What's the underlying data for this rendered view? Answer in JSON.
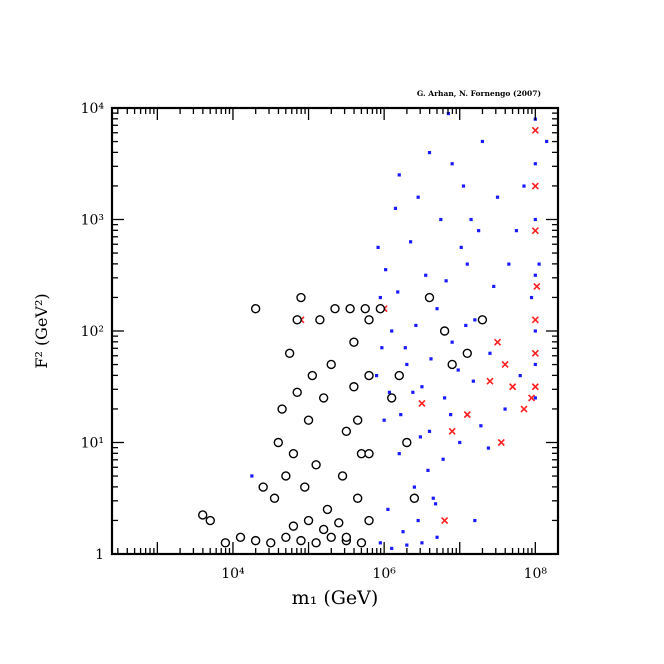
{
  "chart_data": {
    "type": "scatter",
    "title": "",
    "credit": "G. Arhan, N. Fornengo (2007)",
    "xlabel": "m₁  (GeV)",
    "ylabel": "F² (GeV²)",
    "x_scale": "log",
    "y_scale": "log",
    "xlim": [
      2.4,
      8.3
    ],
    "ylim": [
      0,
      4
    ],
    "x_ticks": [
      {
        "value": 4,
        "label": "10⁴"
      },
      {
        "value": 6,
        "label": "10⁶"
      },
      {
        "value": 8,
        "label": "10⁸"
      }
    ],
    "y_ticks": [
      {
        "value": 0,
        "label": "1"
      },
      {
        "value": 1,
        "label": "10¹"
      },
      {
        "value": 2,
        "label": "10²"
      },
      {
        "value": 3,
        "label": "10³"
      },
      {
        "value": 4,
        "label": "10⁴"
      }
    ],
    "grid": false,
    "colors": {
      "dots": "#1a1aff",
      "crosses": "#ff2020",
      "circle_edge": "#000000",
      "axes": "#000000"
    },
    "series": [
      {
        "marker": "dot",
        "color": "#1a1aff",
        "points": [
          [
            5.95,
            2.3
          ],
          [
            6.1,
            2.0
          ],
          [
            6.3,
            1.7
          ],
          [
            6.5,
            1.5
          ],
          [
            6.7,
            2.2
          ],
          [
            6.9,
            1.9
          ],
          [
            7.1,
            2.6
          ],
          [
            6.0,
            1.2
          ],
          [
            6.2,
            0.9
          ],
          [
            6.4,
            0.6
          ],
          [
            6.6,
            1.1
          ],
          [
            6.8,
            1.4
          ],
          [
            7.0,
            1.0
          ],
          [
            7.2,
            2.1
          ],
          [
            7.4,
            1.8
          ],
          [
            6.05,
            0.4
          ],
          [
            6.25,
            0.2
          ],
          [
            6.45,
            0.3
          ],
          [
            6.65,
            0.5
          ],
          [
            5.9,
            1.6
          ],
          [
            6.15,
            3.1
          ],
          [
            6.35,
            2.8
          ],
          [
            6.55,
            2.5
          ],
          [
            6.75,
            3.0
          ],
          [
            7.05,
            3.3
          ],
          [
            7.25,
            2.9
          ],
          [
            7.45,
            2.4
          ],
          [
            7.6,
            1.3
          ],
          [
            7.8,
            1.6
          ],
          [
            8.0,
            3.9
          ],
          [
            8.0,
            3.5
          ],
          [
            8.0,
            3.0
          ],
          [
            8.0,
            2.5
          ],
          [
            8.0,
            2.0
          ],
          [
            8.0,
            1.7
          ],
          [
            8.0,
            1.4
          ],
          [
            8.15,
            3.7
          ],
          [
            8.05,
            2.6
          ],
          [
            7.95,
            2.3
          ],
          [
            6.6,
            3.6
          ],
          [
            7.3,
            3.7
          ],
          [
            6.9,
            3.5
          ],
          [
            7.5,
            3.2
          ],
          [
            6.2,
            3.4
          ],
          [
            5.95,
            0.1
          ],
          [
            6.1,
            0.05
          ],
          [
            6.3,
            0.08
          ],
          [
            6.5,
            0.1
          ],
          [
            6.7,
            0.15
          ],
          [
            7.2,
            0.3
          ],
          [
            5.92,
            2.75
          ],
          [
            6.02,
            2.55
          ],
          [
            6.18,
            2.35
          ],
          [
            6.28,
            1.85
          ],
          [
            6.38,
            1.45
          ],
          [
            6.48,
            1.05
          ],
          [
            6.58,
            0.75
          ],
          [
            6.68,
            0.45
          ],
          [
            6.78,
            0.85
          ],
          [
            6.88,
            1.25
          ],
          [
            6.98,
            1.65
          ],
          [
            7.08,
            2.05
          ],
          [
            7.18,
            1.55
          ],
          [
            7.28,
            1.15
          ],
          [
            7.38,
            0.95
          ],
          [
            5.97,
            1.85
          ],
          [
            6.07,
            1.45
          ],
          [
            6.22,
            1.25
          ],
          [
            6.42,
            2.05
          ],
          [
            6.62,
            1.75
          ],
          [
            6.82,
            2.45
          ],
          [
            7.02,
            2.75
          ],
          [
            4.25,
            0.7
          ],
          [
            7.65,
            2.6
          ],
          [
            7.75,
            2.9
          ],
          [
            7.85,
            3.3
          ],
          [
            6.85,
            3.95
          ],
          [
            6.45,
            3.2
          ],
          [
            7.15,
            3.0
          ]
        ]
      },
      {
        "marker": "cross",
        "color": "#ff2020",
        "points": [
          [
            8.0,
            3.8
          ],
          [
            8.0,
            3.3
          ],
          [
            8.0,
            2.9
          ],
          [
            8.0,
            2.1
          ],
          [
            8.0,
            1.8
          ],
          [
            8.0,
            1.5
          ],
          [
            7.95,
            1.4
          ],
          [
            7.85,
            1.3
          ],
          [
            7.7,
            1.5
          ],
          [
            7.6,
            1.7
          ],
          [
            7.4,
            1.55
          ],
          [
            7.1,
            1.25
          ],
          [
            6.9,
            1.1
          ],
          [
            6.5,
            1.35
          ],
          [
            6.0,
            2.2
          ],
          [
            7.5,
            1.9
          ],
          [
            4.9,
            2.1
          ],
          [
            6.8,
            0.3
          ],
          [
            7.55,
            1.0
          ],
          [
            8.02,
            2.4
          ]
        ]
      },
      {
        "marker": "circle",
        "color": "#000000",
        "points": [
          [
            3.9,
            0.1
          ],
          [
            4.1,
            0.15
          ],
          [
            4.3,
            0.12
          ],
          [
            4.5,
            0.1
          ],
          [
            4.7,
            0.15
          ],
          [
            4.9,
            0.12
          ],
          [
            5.1,
            0.1
          ],
          [
            5.3,
            0.15
          ],
          [
            5.5,
            0.12
          ],
          [
            5.7,
            0.1
          ],
          [
            4.8,
            0.25
          ],
          [
            5.0,
            0.3
          ],
          [
            5.2,
            0.22
          ],
          [
            5.4,
            0.28
          ],
          [
            3.6,
            0.35
          ],
          [
            3.7,
            0.3
          ],
          [
            4.6,
            1.0
          ],
          [
            4.65,
            1.3
          ],
          [
            4.75,
            1.8
          ],
          [
            4.85,
            2.1
          ],
          [
            4.9,
            2.3
          ],
          [
            5.05,
            1.6
          ],
          [
            5.2,
            1.4
          ],
          [
            5.35,
            2.2
          ],
          [
            5.5,
            1.1
          ],
          [
            5.6,
            1.9
          ],
          [
            5.7,
            0.9
          ],
          [
            5.75,
            2.2
          ],
          [
            5.1,
            0.8
          ],
          [
            4.95,
            0.6
          ],
          [
            4.7,
            0.7
          ],
          [
            4.55,
            0.5
          ],
          [
            5.25,
            0.4
          ],
          [
            5.45,
            0.7
          ],
          [
            5.65,
            0.5
          ],
          [
            5.8,
            0.9
          ],
          [
            5.8,
            1.6
          ],
          [
            5.8,
            2.1
          ],
          [
            5.8,
            0.3
          ],
          [
            4.8,
            0.9
          ],
          [
            5.0,
            1.2
          ],
          [
            5.3,
            1.7
          ],
          [
            5.55,
            2.2
          ],
          [
            5.15,
            2.1
          ],
          [
            4.85,
            1.45
          ],
          [
            5.6,
            1.5
          ],
          [
            6.2,
            1.6
          ],
          [
            6.6,
            2.3
          ],
          [
            6.9,
            1.7
          ],
          [
            7.3,
            2.1
          ],
          [
            6.4,
            0.5
          ],
          [
            6.1,
            1.4
          ],
          [
            5.95,
            2.2
          ],
          [
            6.8,
            2.0
          ],
          [
            7.1,
            1.8
          ],
          [
            6.3,
            1.0
          ],
          [
            5.5,
            0.15
          ],
          [
            4.4,
            0.6
          ],
          [
            4.3,
            2.2
          ],
          [
            5.65,
            1.2
          ]
        ]
      }
    ]
  }
}
